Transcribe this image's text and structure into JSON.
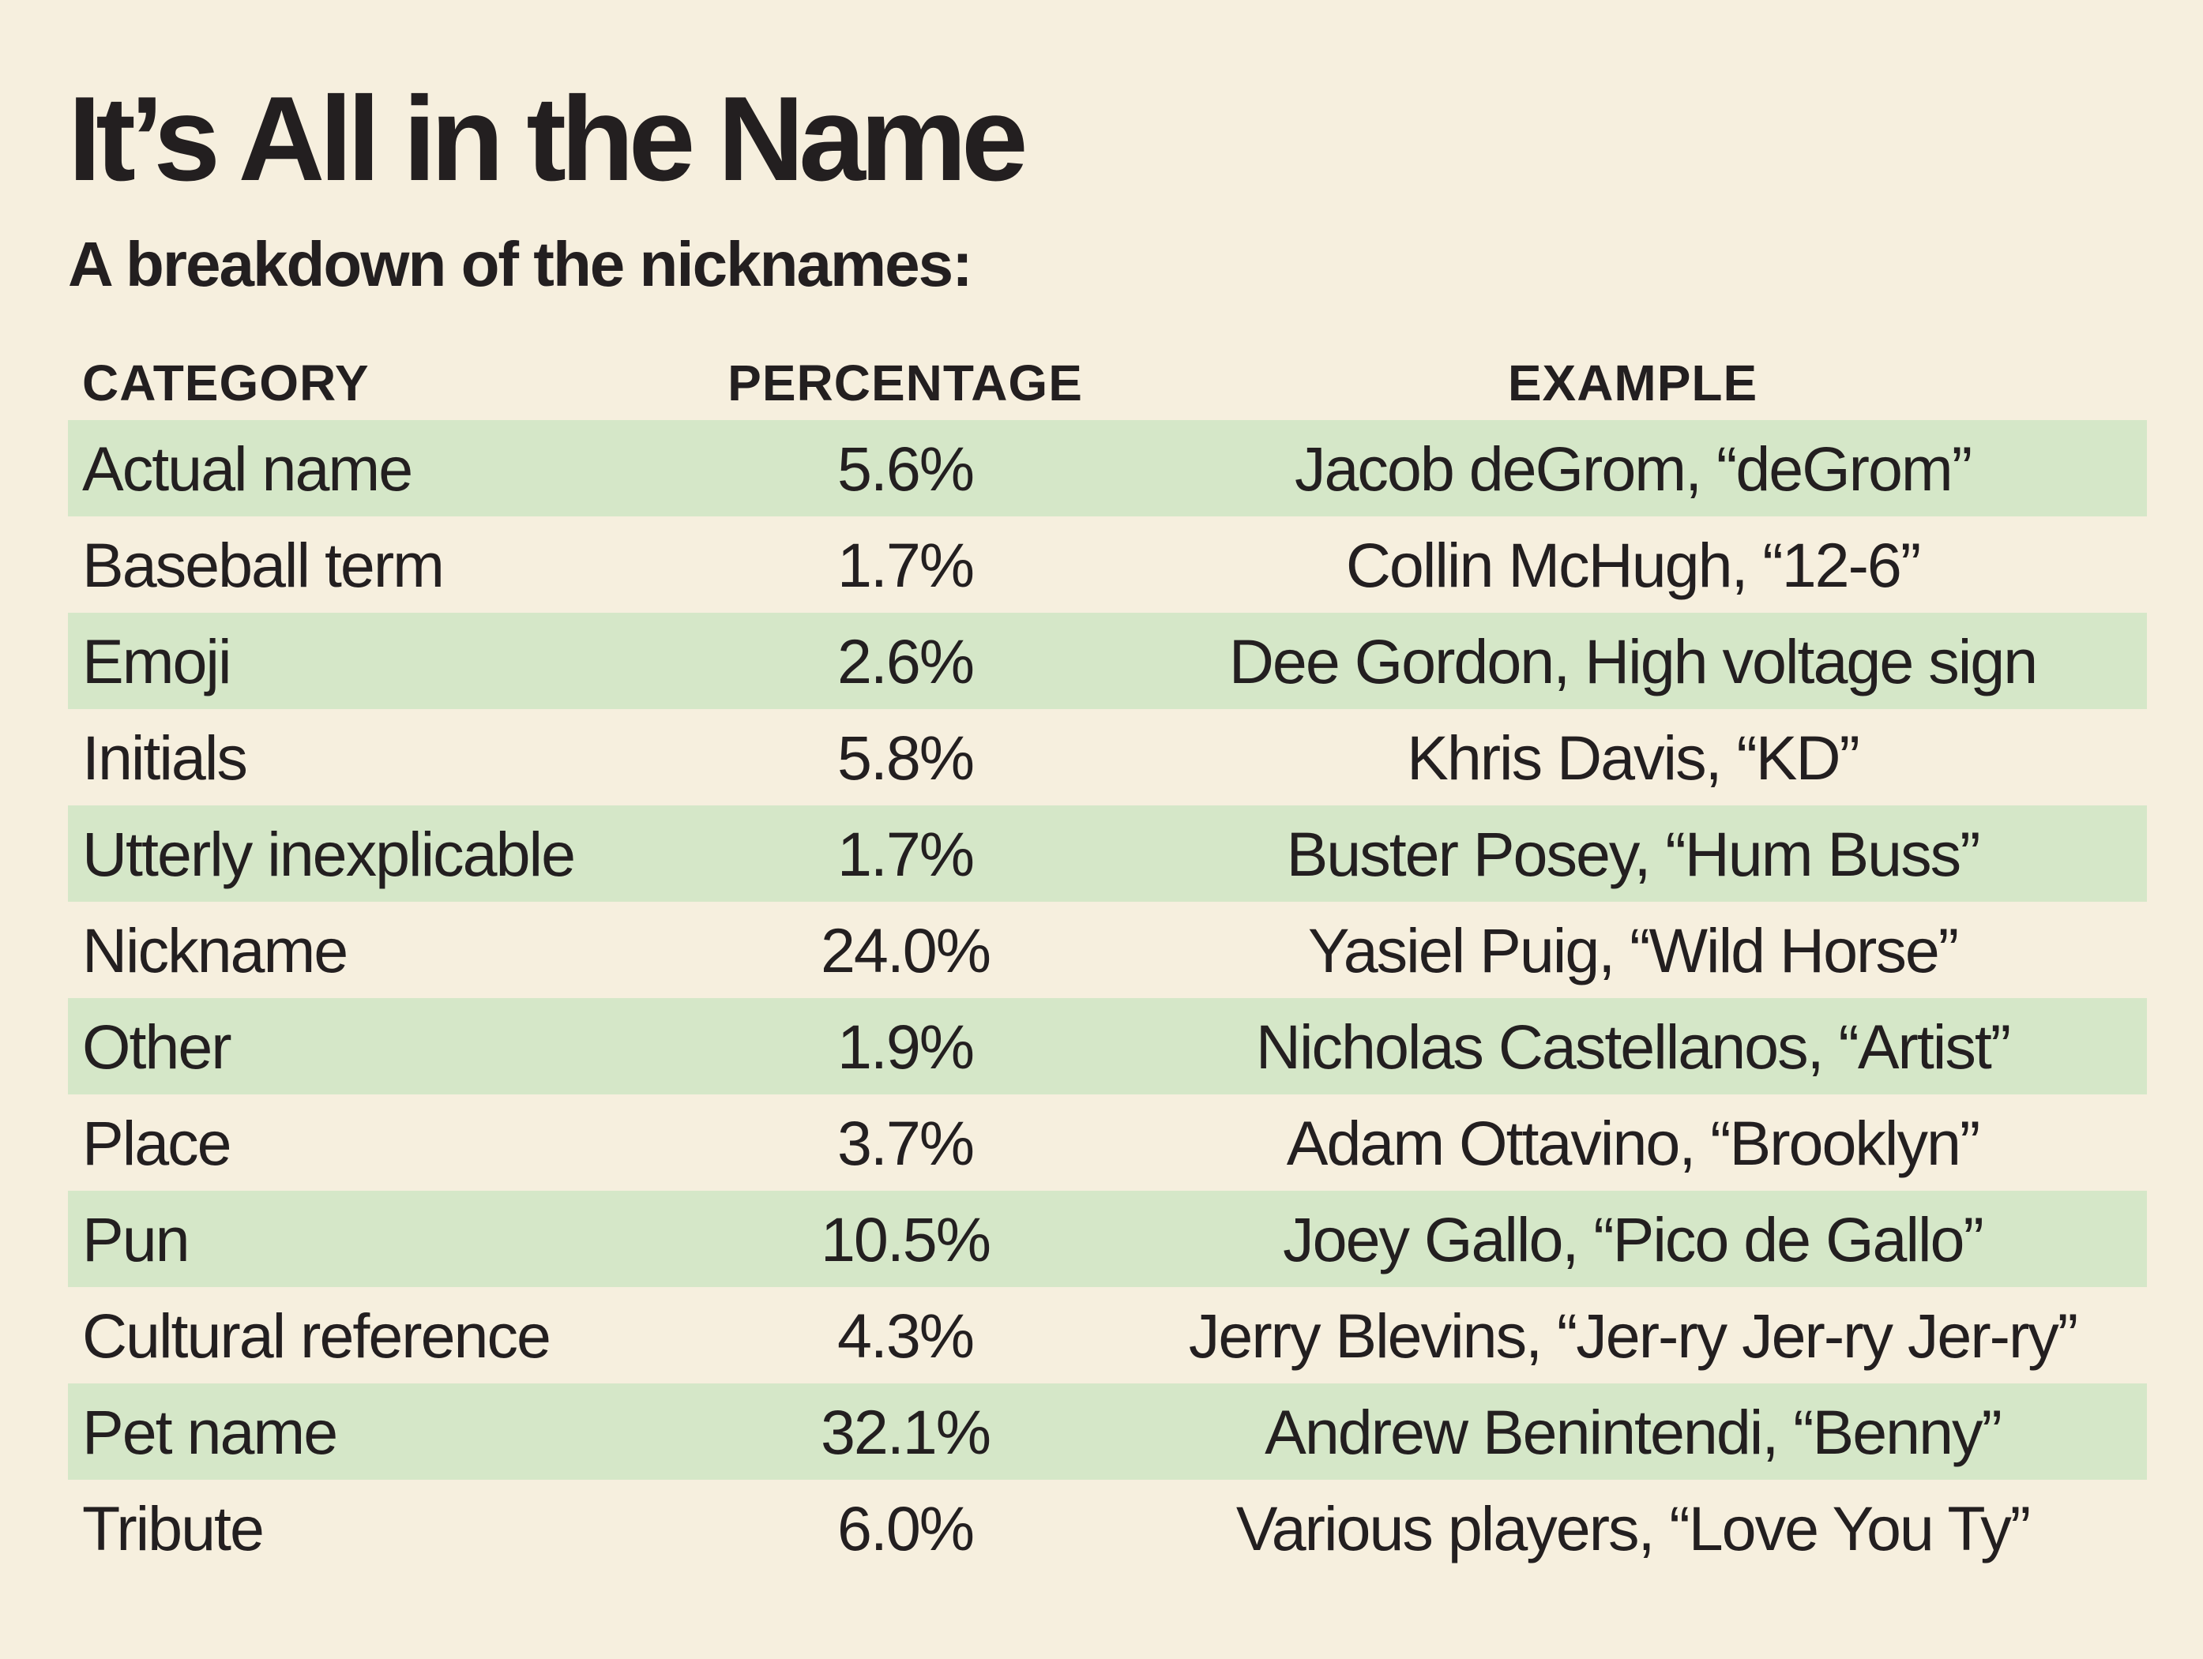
{
  "title": "It’s All in the Name",
  "subtitle": "A breakdown of the nicknames:",
  "table": {
    "headers": {
      "category": "CATEGORY",
      "percentage": "PERCENTAGE",
      "example": "EXAMPLE"
    },
    "rows": [
      {
        "category": "Actual name",
        "percentage": "5.6%",
        "example": "Jacob deGrom, “deGrom”"
      },
      {
        "category": "Baseball term",
        "percentage": "1.7%",
        "example": "Collin McHugh, “12-6”"
      },
      {
        "category": "Emoji",
        "percentage": "2.6%",
        "example": "Dee Gordon, High voltage sign"
      },
      {
        "category": "Initials",
        "percentage": "5.8%",
        "example": "Khris Davis, “KD”"
      },
      {
        "category": "Utterly inexplicable",
        "percentage": "1.7%",
        "example": "Buster Posey, “Hum Buss”"
      },
      {
        "category": "Nickname",
        "percentage": "24.0%",
        "example": "Yasiel Puig, “Wild Horse”"
      },
      {
        "category": "Other",
        "percentage": "1.9%",
        "example": "Nicholas Castellanos, “Artist”"
      },
      {
        "category": "Place",
        "percentage": "3.7%",
        "example": "Adam Ottavino, “Brooklyn”"
      },
      {
        "category": "Pun",
        "percentage": "10.5%",
        "example": "Joey Gallo, “Pico de Gallo”"
      },
      {
        "category": "Cultural reference",
        "percentage": "4.3%",
        "example": "Jerry Blevins, “Jer-ry Jer-ry Jer-ry”"
      },
      {
        "category": "Pet name",
        "percentage": "32.1%",
        "example": "Andrew Benintendi, “Benny”"
      },
      {
        "category": "Tribute",
        "percentage": "6.0%",
        "example": "Various players, “Love You Ty”"
      }
    ]
  },
  "colors": {
    "background": "#f6efde",
    "row_shade": "#d5e7c8",
    "text": "#231f20"
  }
}
